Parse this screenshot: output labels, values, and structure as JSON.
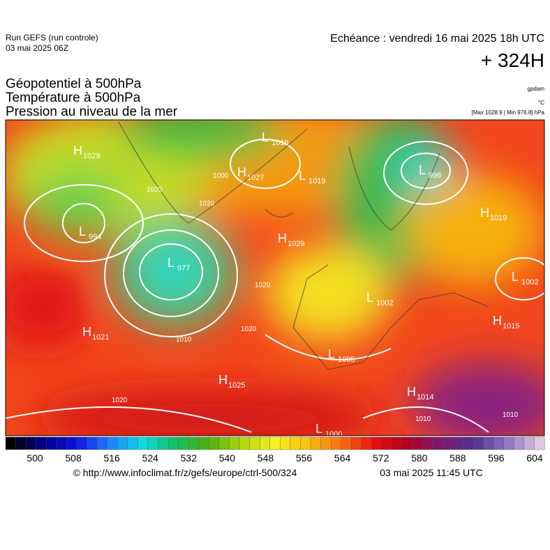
{
  "header": {
    "run": "Run GEFS (run controle)",
    "date": "03 mai 2025 06Z",
    "echeance": "Echéance : vendredi 16 mai 2025 18h UTC",
    "lead": "+ 324H",
    "fields": [
      "Géopotentiel à 500hPa",
      "Température à 500hPa",
      "Pression au niveau de la mer"
    ],
    "units": [
      "gpdam",
      "°C",
      "[Max 1028.9 | Min 976.8] hPa"
    ]
  },
  "map": {
    "centers": [
      {
        "type": "H",
        "value": 1029
      },
      {
        "type": "L",
        "value": 1016
      },
      {
        "type": "H",
        "value": 1027
      },
      {
        "type": "L",
        "value": 1019
      },
      {
        "type": "L",
        "value": 996
      },
      {
        "type": "L",
        "value": 994
      },
      {
        "type": "L",
        "value": 977
      },
      {
        "type": "H",
        "value": 1029
      },
      {
        "type": "H",
        "value": 1019
      },
      {
        "type": "L",
        "value": 1002
      },
      {
        "type": "L",
        "value": 1002
      },
      {
        "type": "H",
        "value": 1015
      },
      {
        "type": "H",
        "value": 1021
      },
      {
        "type": "L",
        "value": 1005
      },
      {
        "type": "H",
        "value": 1025
      },
      {
        "type": "H",
        "value": 1014
      },
      {
        "type": "L",
        "value": 1000
      }
    ],
    "contour_labels": [
      1020,
      1000,
      1020,
      1020,
      1020,
      1010,
      1020,
      1010,
      1010
    ]
  },
  "scale": {
    "ticks": [
      500,
      508,
      516,
      524,
      532,
      540,
      548,
      556,
      564,
      572,
      580,
      588,
      596,
      604
    ]
  },
  "footer": {
    "url": "© http://www.infoclimat.fr/z/gefs/europe/ctrl-500/324",
    "issued": "03 mai 2025 11:45 UTC"
  }
}
